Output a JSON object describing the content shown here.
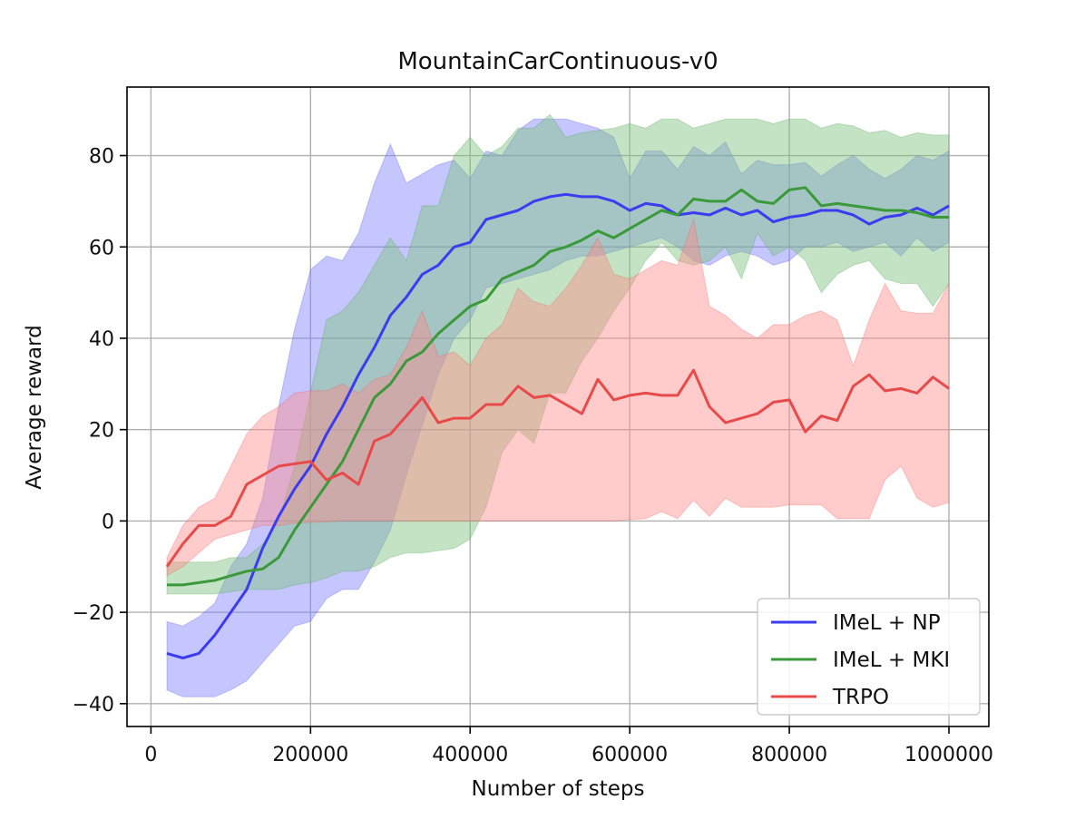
{
  "chart_data": {
    "type": "line",
    "title": "MountainCarContinuous-v0",
    "xlabel": "Number of steps",
    "ylabel": "Average reward",
    "xlim": [
      -30000,
      1050000
    ],
    "ylim": [
      -45,
      95
    ],
    "xticks": [
      0,
      200000,
      400000,
      600000,
      800000,
      1000000
    ],
    "xtick_labels": [
      "0",
      "200000",
      "400000",
      "600000",
      "800000",
      "1000000"
    ],
    "yticks": [
      -40,
      -20,
      0,
      20,
      40,
      60,
      80
    ],
    "ytick_labels": [
      "−40",
      "−20",
      "0",
      "20",
      "40",
      "60",
      "80"
    ],
    "grid": true,
    "legend_position": "bottom-right",
    "x": [
      20000,
      40000,
      60000,
      80000,
      100000,
      120000,
      140000,
      160000,
      180000,
      200000,
      220000,
      240000,
      260000,
      280000,
      300000,
      320000,
      340000,
      360000,
      380000,
      400000,
      420000,
      440000,
      460000,
      480000,
      500000,
      520000,
      540000,
      560000,
      580000,
      600000,
      620000,
      640000,
      660000,
      680000,
      700000,
      720000,
      740000,
      760000,
      780000,
      800000,
      820000,
      840000,
      860000,
      880000,
      900000,
      920000,
      940000,
      960000,
      980000,
      1000000
    ],
    "series": [
      {
        "name": "IMeL + NP",
        "color": "#3b3bf0",
        "fill_color": "#8080ff",
        "mean": [
          -29,
          -30,
          -29,
          -25,
          -20,
          -15,
          -6,
          1,
          7,
          12,
          19,
          25,
          32,
          38,
          45,
          49,
          54,
          56,
          60,
          61,
          66,
          67,
          68,
          70,
          71,
          71.5,
          71,
          71,
          70,
          68,
          69.5,
          69,
          67,
          67.5,
          67,
          68.5,
          67,
          68,
          65.5,
          66.5,
          67,
          68,
          68,
          67,
          65,
          66.5,
          67,
          68.5,
          67,
          69
        ],
        "upper": [
          -22,
          -23,
          -21,
          -18,
          -10,
          -5,
          5,
          25,
          42,
          55,
          58,
          57,
          63,
          74,
          82.5,
          74,
          76,
          78,
          79,
          75,
          81,
          80,
          85.5,
          88,
          88,
          88,
          87,
          86,
          84,
          75,
          81,
          81,
          77,
          82,
          80,
          83,
          76,
          79,
          78,
          78,
          78.5,
          75.5,
          78,
          80,
          77,
          75,
          77,
          80,
          79,
          81
        ],
        "lower": [
          -37,
          -38.5,
          -38.5,
          -38.5,
          -37,
          -35,
          -31,
          -27,
          -23,
          -22,
          -17,
          -15,
          -15,
          -9,
          -2,
          10,
          21,
          32,
          40,
          44,
          51,
          52,
          53,
          54,
          55,
          57,
          58,
          58,
          59,
          60,
          61,
          62,
          60,
          57,
          56,
          58,
          59,
          58,
          56,
          57,
          60,
          60,
          61,
          59,
          60,
          61,
          58,
          62,
          59,
          61
        ]
      },
      {
        "name": "IMeL + MKI",
        "color": "#3a9a3a",
        "fill_color": "#7cc07c",
        "mean": [
          -14,
          -14,
          -13.5,
          -13,
          -12,
          -11,
          -10.5,
          -8,
          -2,
          3,
          8,
          13,
          20,
          27,
          30,
          35,
          37,
          41,
          44,
          47,
          48.5,
          53,
          54.5,
          56,
          59,
          60,
          61.5,
          63.5,
          62,
          64,
          66,
          68,
          67,
          70.5,
          70,
          70,
          72.5,
          70,
          69.5,
          72.5,
          73,
          69,
          69.5,
          69,
          68.5,
          68,
          68,
          67.5,
          66.5,
          66.5
        ],
        "upper": [
          -9,
          -9,
          -9,
          -9,
          -8,
          -8,
          -5,
          0,
          12,
          28,
          44,
          46,
          50,
          56,
          62,
          57,
          69,
          69,
          80,
          84,
          80,
          82,
          86,
          86,
          89,
          84,
          85,
          85.5,
          86,
          87,
          86,
          88,
          88,
          86,
          87,
          88,
          88,
          88,
          87,
          88,
          88,
          86,
          87,
          86.5,
          85,
          85.5,
          84,
          85,
          84.5,
          84.5
        ],
        "lower": [
          -16,
          -16,
          -16,
          -16,
          -15.5,
          -15,
          -15,
          -15,
          -14,
          -13.5,
          -12.5,
          -11,
          -11,
          -10,
          -8,
          -7,
          -7,
          -6.5,
          -6,
          -4,
          3,
          15,
          20,
          17,
          28,
          28,
          35,
          40,
          46,
          51,
          57,
          61,
          57,
          56,
          57,
          60,
          53,
          63,
          58,
          60,
          57,
          50,
          54,
          56,
          57,
          53,
          52,
          52,
          47,
          52
        ]
      },
      {
        "name": "TRPO",
        "color": "#e84a4a",
        "fill_color": "#ff8c8c",
        "mean": [
          -10,
          -5,
          -1,
          -1,
          1,
          8,
          10,
          12,
          12.5,
          13,
          9,
          10.5,
          8,
          17.5,
          19,
          23,
          27,
          21.5,
          22.5,
          22.5,
          25.5,
          25.5,
          29.5,
          27,
          27.5,
          25.5,
          23.5,
          31,
          26.5,
          27.5,
          28,
          27.5,
          27.5,
          33,
          25,
          21.5,
          22.5,
          23.5,
          26,
          26.5,
          19.5,
          23,
          22,
          29.5,
          32,
          28.5,
          29,
          28,
          31.5,
          29
        ],
        "upper": [
          -8,
          -1,
          3,
          5,
          12,
          19,
          23,
          25,
          28,
          28.5,
          28.5,
          30,
          28,
          31,
          32,
          38,
          46,
          36,
          37,
          34,
          40,
          43,
          51,
          48,
          47,
          51,
          56,
          62,
          54,
          53,
          55,
          57,
          56,
          66,
          47,
          45,
          42,
          40,
          43,
          43,
          45,
          46,
          44,
          34,
          44,
          52,
          46,
          45.5,
          45.5,
          52
        ],
        "lower": [
          -12,
          -10,
          -7,
          -4,
          -3,
          -2,
          -1,
          -1,
          -0.5,
          -0.3,
          -0.2,
          0,
          0,
          0,
          0,
          0,
          0,
          0,
          0,
          0,
          0,
          0,
          0,
          0,
          0,
          0,
          0,
          0,
          0,
          0.3,
          0.5,
          2,
          0.5,
          4.5,
          1,
          5,
          3,
          3,
          3,
          3.5,
          3.5,
          3.5,
          0.5,
          0.5,
          0.5,
          9,
          12,
          5,
          3,
          4
        ]
      }
    ]
  }
}
